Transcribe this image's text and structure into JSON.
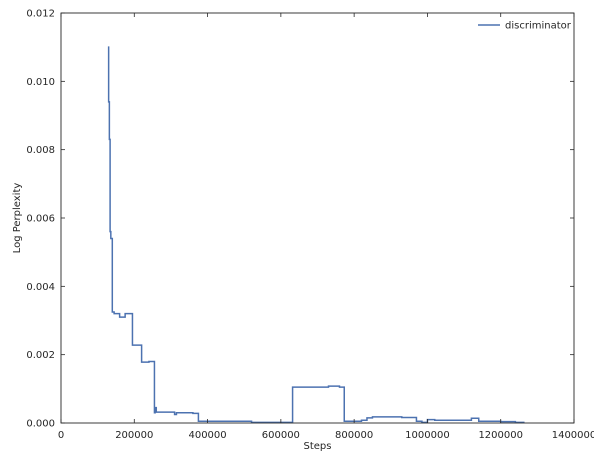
{
  "chart_data": {
    "type": "line",
    "title": "",
    "xlabel": "Steps",
    "ylabel": "Log Perplexity",
    "xlim": [
      0,
      1400000
    ],
    "ylim": [
      0,
      0.012
    ],
    "x_ticks": [
      0,
      200000,
      400000,
      600000,
      800000,
      1000000,
      1200000,
      1400000
    ],
    "x_tick_labels": [
      "0",
      "200000",
      "400000",
      "600000",
      "800000",
      "1000000",
      "1200000",
      "1400000"
    ],
    "y_ticks": [
      0,
      0.002,
      0.004,
      0.006,
      0.008,
      0.01,
      0.012
    ],
    "y_tick_labels": [
      "0.000",
      "0.002",
      "0.004",
      "0.006",
      "0.008",
      "0.010",
      "0.012"
    ],
    "grid": false,
    "legend_position": "top-right",
    "series": [
      {
        "name": "discriminator",
        "color": "#4c72b0",
        "step": true,
        "x": [
          128000,
          130000,
          132000,
          134000,
          136000,
          140000,
          145000,
          160000,
          175000,
          195000,
          220000,
          240000,
          255000,
          257000,
          260000,
          265000,
          310000,
          315000,
          330000,
          360000,
          375000,
          440000,
          520000,
          600000,
          632000,
          660000,
          700000,
          730000,
          760000,
          773000,
          800000,
          820000,
          835000,
          850000,
          880000,
          900000,
          930000,
          970000,
          985000,
          1000000,
          1020000,
          1040000,
          1080000,
          1120000,
          1140000,
          1160000,
          1200000,
          1240000,
          1265000
        ],
        "y": [
          0.011,
          0.0094,
          0.0083,
          0.0056,
          0.0054,
          0.00325,
          0.0032,
          0.0031,
          0.0032,
          0.00228,
          0.00178,
          0.0018,
          0.0003,
          0.00045,
          0.00032,
          0.00032,
          0.00025,
          0.0003,
          0.0003,
          0.00028,
          5e-05,
          5e-05,
          2e-05,
          2e-05,
          0.00105,
          0.00105,
          0.00105,
          0.00108,
          0.00105,
          5e-05,
          5e-05,
          8e-05,
          0.00015,
          0.00018,
          0.00018,
          0.00018,
          0.00016,
          5e-05,
          2e-05,
          0.0001,
          8e-05,
          8e-05,
          8e-05,
          0.00014,
          5e-05,
          5e-05,
          4e-05,
          2e-05,
          2e-05
        ]
      }
    ]
  }
}
